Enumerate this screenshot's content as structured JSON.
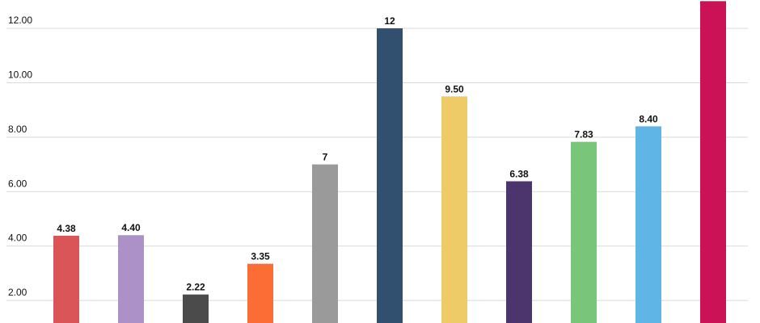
{
  "chart_data": {
    "type": "bar",
    "title": "",
    "xlabel": "",
    "ylabel": "",
    "ylim": [
      0,
      13
    ],
    "grid": true,
    "y_ticks": [
      "2.00",
      "4.00",
      "6.00",
      "8.00",
      "10.00",
      "12.00"
    ],
    "y_tick_values": [
      2,
      4,
      6,
      8,
      10,
      12
    ],
    "bars": [
      {
        "value": 4.38,
        "label": "4.38",
        "color": "#d95557"
      },
      {
        "value": 4.4,
        "label": "4.40",
        "color": "#ab91c8"
      },
      {
        "value": 2.22,
        "label": "2.22",
        "color": "#4b4b4b"
      },
      {
        "value": 3.35,
        "label": "3.35",
        "color": "#fb6d35"
      },
      {
        "value": 7,
        "label": "7",
        "color": "#9a9a9a"
      },
      {
        "value": 12,
        "label": "12",
        "color": "#314f6e"
      },
      {
        "value": 9.5,
        "label": "9.50",
        "color": "#eecb66"
      },
      {
        "value": 6.38,
        "label": "6.38",
        "color": "#4c356d"
      },
      {
        "value": 7.83,
        "label": "7.83",
        "color": "#79c67a"
      },
      {
        "value": 8.4,
        "label": "8.40",
        "color": "#5fb5e5"
      },
      {
        "value": 13,
        "label": "",
        "color": "#cc1256"
      }
    ]
  }
}
